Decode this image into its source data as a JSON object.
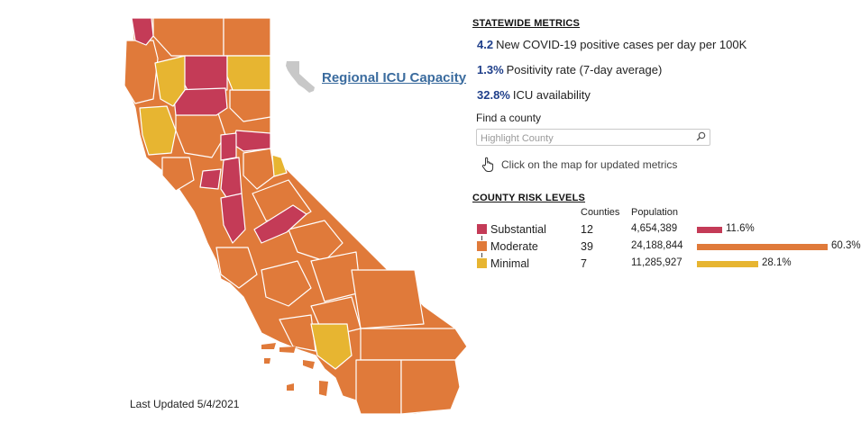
{
  "map": {
    "icu_link": "Regional ICU Capacity",
    "last_updated": "Last Updated 5/4/2021",
    "colors": {
      "substantial": "#c43b57",
      "moderate": "#e07a3a",
      "minimal": "#e7b531"
    }
  },
  "statewide": {
    "title": "STATEWIDE METRICS",
    "metrics": [
      {
        "value": "4.2",
        "label": "New COVID-19 positive cases per day per 100K"
      },
      {
        "value": "1.3%",
        "label": "Positivity rate (7-day average)"
      },
      {
        "value": "32.8%",
        "label": "ICU availability"
      }
    ]
  },
  "search": {
    "label": "Find a county",
    "placeholder": "Highlight County",
    "icon": "search-icon"
  },
  "hint": {
    "text": "Click on the map for updated metrics",
    "icon": "hand-pointer-icon"
  },
  "risk": {
    "title": "COUNTY RISK LEVELS",
    "headers": {
      "counties": "Counties",
      "population": "Population"
    },
    "rows": [
      {
        "level": "Substantial",
        "counties": "12",
        "population": "4,654,389",
        "percent": "11.6%",
        "fraction": 0.116,
        "color": "#c43b57"
      },
      {
        "level": "Moderate",
        "counties": "39",
        "population": "24,188,844",
        "percent": "60.3%",
        "fraction": 0.603,
        "color": "#e07a3a"
      },
      {
        "level": "Minimal",
        "counties": "7",
        "population": "11,285,927",
        "percent": "28.1%",
        "fraction": 0.281,
        "color": "#e7b531"
      }
    ]
  }
}
